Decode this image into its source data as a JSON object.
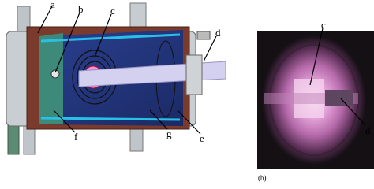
{
  "left_panel": {
    "labels": [
      "a",
      "b",
      "c",
      "d",
      "e",
      "f",
      "g"
    ]
  },
  "right_panel": {
    "labels": [
      "c",
      "d"
    ],
    "caption": "(b)"
  }
}
